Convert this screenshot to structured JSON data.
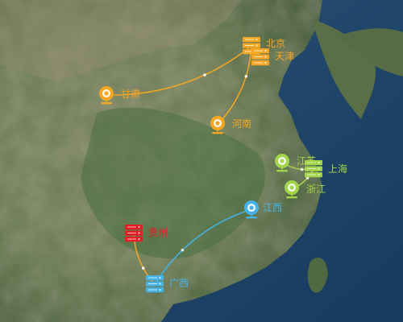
{
  "map": {
    "colors": {
      "orange": "#f5a623",
      "green": "#a3d54c",
      "blue": "#45b3e8",
      "red": "#e51c23"
    },
    "markers": [
      {
        "id": "beijing",
        "label": "北京",
        "icon": "server-stack-icon",
        "color": "orange"
      },
      {
        "id": "tianjin",
        "label": "天津",
        "icon": "server-stack-icon",
        "color": "orange"
      },
      {
        "id": "gansu",
        "label": "甘肃",
        "icon": "camera-pin-icon",
        "color": "orange"
      },
      {
        "id": "henan",
        "label": "河南",
        "icon": "camera-pin-icon",
        "color": "orange"
      },
      {
        "id": "jiangsu",
        "label": "江苏",
        "icon": "camera-pin-icon",
        "color": "green"
      },
      {
        "id": "shanghai",
        "label": "上海",
        "icon": "server-stack-icon",
        "color": "green"
      },
      {
        "id": "zhejiang",
        "label": "浙江",
        "icon": "camera-pin-icon",
        "color": "green"
      },
      {
        "id": "jiangxi",
        "label": "江西",
        "icon": "camera-pin-icon",
        "color": "blue"
      },
      {
        "id": "guizhou",
        "label": "贵州",
        "icon": "server-stack-icon",
        "color": "red"
      },
      {
        "id": "guangxi",
        "label": "广西",
        "icon": "server-stack-icon",
        "color": "blue"
      }
    ],
    "routes": [
      {
        "from": "gansu",
        "to": "beijing",
        "color": "orange"
      },
      {
        "from": "henan",
        "to": "beijing",
        "color": "orange"
      },
      {
        "from": "jiangsu",
        "to": "shanghai",
        "color": "green"
      },
      {
        "from": "zhejiang",
        "to": "shanghai",
        "color": "green"
      },
      {
        "from": "jiangxi",
        "to": "guangxi",
        "color": "blue"
      },
      {
        "from": "guizhou",
        "to": "guangxi",
        "color": "orange"
      }
    ]
  }
}
